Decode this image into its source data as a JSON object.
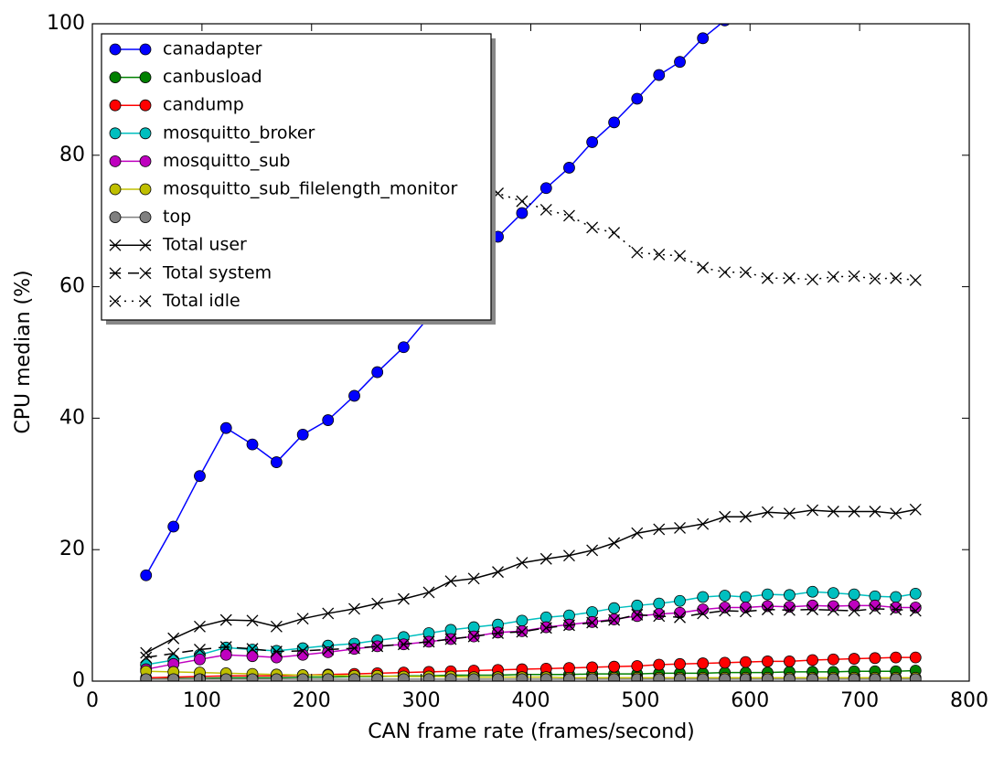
{
  "chart_data": {
    "type": "line",
    "xlabel": "CAN frame rate (frames/second)",
    "ylabel": "CPU median (%)",
    "xlim": [
      0,
      800
    ],
    "xticks": [
      0,
      100,
      200,
      300,
      400,
      500,
      600,
      700,
      800
    ],
    "ylim": [
      0,
      100
    ],
    "yticks": [
      0,
      20,
      40,
      60,
      80,
      100
    ],
    "legend": "upper left",
    "x": [
      49,
      74,
      98,
      122,
      146,
      168,
      192,
      215,
      239,
      260,
      284,
      307,
      327,
      348,
      370,
      392,
      414,
      435,
      456,
      476,
      497,
      517,
      536,
      557,
      577,
      596,
      616,
      636,
      657,
      676,
      695,
      714,
      733,
      751
    ],
    "series": [
      {
        "name": "canadapter",
        "color": "#0000ff",
        "marker": "o",
        "linestyle": "solid",
        "values": [
          16.1,
          23.5,
          31.2,
          38.5,
          36.0,
          33.3,
          37.5,
          39.7,
          43.4,
          47.0,
          50.8,
          55.4,
          59.5,
          63.5,
          67.6,
          71.2,
          75.0,
          78.1,
          82.0,
          85.0,
          88.6,
          92.2,
          94.2,
          97.8,
          100.5,
          null,
          null,
          null,
          null,
          null,
          null,
          null,
          null,
          null
        ]
      },
      {
        "name": "canbusload",
        "color": "#008000",
        "marker": "o",
        "linestyle": "solid",
        "values": [
          0.3,
          0.4,
          0.4,
          0.5,
          0.5,
          0.5,
          0.6,
          0.6,
          0.7,
          0.7,
          0.8,
          0.8,
          0.9,
          0.9,
          0.9,
          1.0,
          1.0,
          1.0,
          1.1,
          1.1,
          1.1,
          1.2,
          1.2,
          1.2,
          1.3,
          1.3,
          1.3,
          1.4,
          1.4,
          1.4,
          1.5,
          1.5,
          1.5,
          1.6
        ]
      },
      {
        "name": "candump",
        "color": "#ff0000",
        "marker": "o",
        "linestyle": "solid",
        "values": [
          0.5,
          0.6,
          0.7,
          0.8,
          0.8,
          0.8,
          0.9,
          1.0,
          1.1,
          1.2,
          1.3,
          1.4,
          1.5,
          1.6,
          1.7,
          1.8,
          1.9,
          2.0,
          2.1,
          2.2,
          2.3,
          2.5,
          2.6,
          2.7,
          2.8,
          2.9,
          3.0,
          3.0,
          3.2,
          3.3,
          3.4,
          3.5,
          3.6,
          3.6
        ]
      },
      {
        "name": "mosquitto_broker",
        "color": "#00bfbf",
        "marker": "o",
        "linestyle": "solid",
        "values": [
          2.5,
          3.2,
          4.0,
          5.1,
          4.8,
          4.6,
          5.0,
          5.4,
          5.7,
          6.2,
          6.7,
          7.3,
          7.8,
          8.2,
          8.6,
          9.2,
          9.7,
          10.0,
          10.5,
          11.1,
          11.5,
          11.8,
          12.2,
          12.8,
          13.0,
          12.8,
          13.2,
          13.1,
          13.6,
          13.4,
          13.2,
          12.9,
          12.8,
          13.3
        ]
      },
      {
        "name": "mosquitto_sub",
        "color": "#bf00bf",
        "marker": "o",
        "linestyle": "solid",
        "values": [
          1.8,
          2.6,
          3.3,
          4.0,
          3.8,
          3.6,
          4.0,
          4.4,
          4.9,
          5.3,
          5.6,
          6.0,
          6.4,
          6.8,
          7.4,
          7.6,
          8.2,
          8.6,
          9.0,
          9.4,
          9.9,
          10.2,
          10.4,
          10.9,
          11.2,
          11.2,
          11.4,
          11.3,
          11.5,
          11.4,
          11.5,
          11.5,
          11.2,
          11.2
        ]
      },
      {
        "name": "mosquitto_sub_filelength_monitor",
        "color": "#bfbf00",
        "marker": "o",
        "linestyle": "solid",
        "values": [
          1.5,
          1.4,
          1.3,
          1.2,
          1.1,
          1.0,
          0.9,
          0.9,
          0.8,
          0.8,
          0.7,
          0.7,
          0.7,
          0.6,
          0.6,
          0.6,
          0.6,
          0.5,
          0.5,
          0.5,
          0.5,
          0.5,
          0.5,
          0.5,
          0.5,
          0.5,
          0.5,
          0.5,
          0.5,
          0.5,
          0.5,
          0.5,
          0.5,
          0.5
        ]
      },
      {
        "name": "top",
        "color": "#808080",
        "marker": "o",
        "linestyle": "solid",
        "values": [
          0.3,
          0.3,
          0.3,
          0.3,
          0.3,
          0.3,
          0.3,
          0.3,
          0.3,
          0.3,
          0.3,
          0.3,
          0.3,
          0.3,
          0.3,
          0.3,
          0.3,
          0.3,
          0.3,
          0.3,
          0.3,
          0.3,
          0.3,
          0.3,
          0.3,
          0.3,
          0.3,
          0.3,
          0.3,
          0.3,
          0.3,
          0.3,
          0.3,
          0.3
        ]
      },
      {
        "name": "Total user",
        "color": "#000000",
        "marker": "x",
        "linestyle": "solid",
        "values": [
          4.3,
          6.5,
          8.3,
          9.3,
          9.2,
          8.3,
          9.5,
          10.3,
          11.0,
          11.8,
          12.5,
          13.5,
          15.2,
          15.6,
          16.6,
          18.0,
          18.6,
          19.1,
          19.9,
          21.0,
          22.5,
          23.1,
          23.3,
          23.9,
          25.0,
          25.0,
          25.7,
          25.5,
          26.0,
          25.8,
          25.8,
          25.8,
          25.5,
          26.1
        ]
      },
      {
        "name": "Total system",
        "color": "#000000",
        "marker": "x",
        "linestyle": "dashed",
        "values": [
          3.6,
          4.2,
          4.8,
          5.2,
          4.9,
          4.5,
          4.6,
          4.8,
          5.0,
          5.3,
          5.6,
          6.0,
          6.4,
          6.8,
          7.3,
          7.5,
          8.1,
          8.5,
          8.9,
          9.3,
          10.1,
          9.9,
          9.7,
          10.3,
          10.7,
          10.6,
          10.9,
          10.8,
          10.9,
          10.8,
          10.7,
          11.0,
          10.9,
          10.7
        ]
      },
      {
        "name": "Total idle",
        "color": "#000000",
        "marker": "x",
        "linestyle": "dotted",
        "values": [
          null,
          null,
          null,
          null,
          null,
          null,
          null,
          null,
          null,
          null,
          null,
          null,
          null,
          75.5,
          74.2,
          73.0,
          71.7,
          70.8,
          69.0,
          68.2,
          65.2,
          64.9,
          64.7,
          62.9,
          62.2,
          62.2,
          61.3,
          61.3,
          61.1,
          61.5,
          61.6,
          61.2,
          61.3,
          61.0
        ]
      }
    ]
  }
}
